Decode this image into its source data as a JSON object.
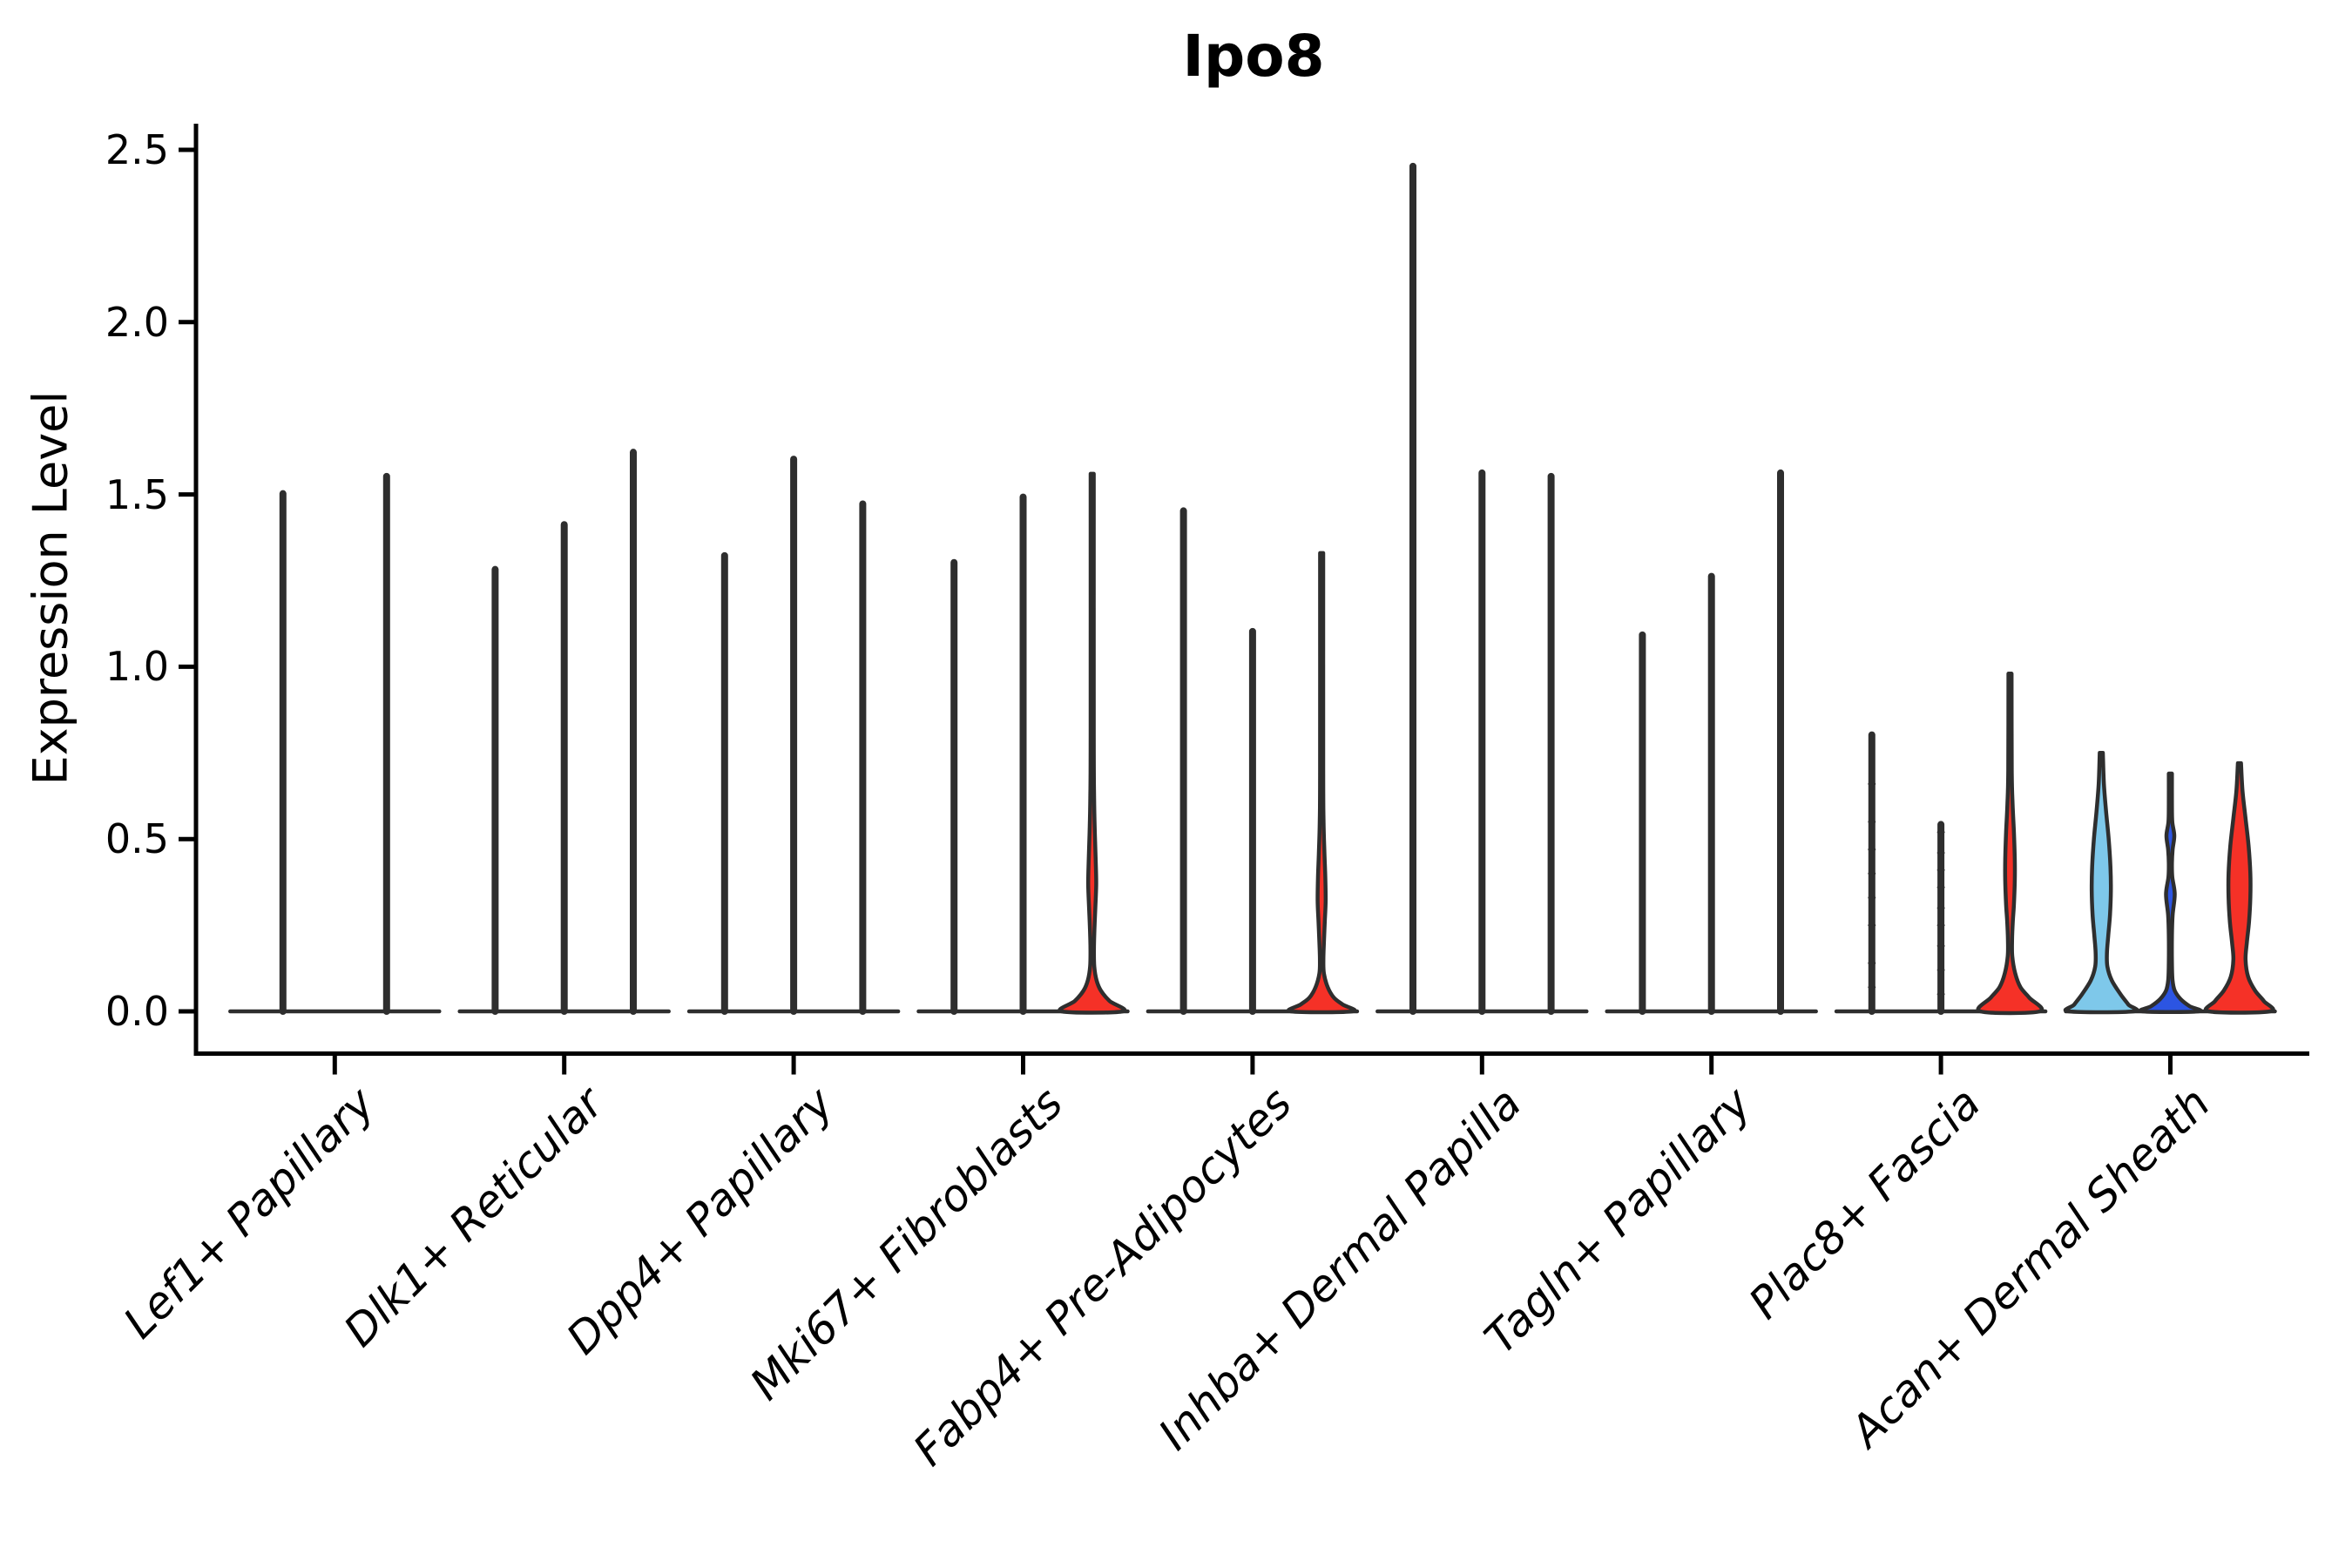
{
  "chart_data": {
    "type": "violin",
    "title": "Ipo8",
    "ylabel": "Expression Level",
    "ylim": [
      0.0,
      2.5
    ],
    "yticks": [
      {
        "value": 0.0,
        "label": "0.0"
      },
      {
        "value": 0.5,
        "label": "0.5"
      },
      {
        "value": 1.0,
        "label": "1.0"
      },
      {
        "value": 1.5,
        "label": "1.5"
      },
      {
        "value": 2.0,
        "label": "2.0"
      },
      {
        "value": 2.5,
        "label": "2.5"
      }
    ],
    "grid": false,
    "legend": null,
    "colors": {
      "axis": "#000000",
      "violin_stroke": "#2e2e2e",
      "red": "#f53127",
      "light_blue": "#7ec8ea",
      "dark_blue": "#2c55e2"
    },
    "categories": [
      {
        "label": "Lef1+ Papillary",
        "violins": [
          {
            "max": 1.51
          },
          {
            "max": 1.56
          }
        ]
      },
      {
        "label": "Dlk1+ Reticular",
        "violins": [
          {
            "max": 1.29
          },
          {
            "max": 1.42
          },
          {
            "max": 1.63
          }
        ]
      },
      {
        "label": "Dpp4+ Papillary",
        "violins": [
          {
            "max": 1.33
          },
          {
            "max": 1.61
          },
          {
            "max": 1.48
          }
        ]
      },
      {
        "label": "Mki67+ Fibroblasts",
        "violins": [
          {
            "max": 1.31
          },
          {
            "max": 1.5
          },
          {
            "max": 1.56,
            "fill": "red",
            "profile": [
              [
                1.56,
                1.8
              ],
              [
                0.8,
                1.8
              ],
              [
                0.62,
                2.2
              ],
              [
                0.52,
                3.0
              ],
              [
                0.44,
                4.0
              ],
              [
                0.37,
                4.6
              ],
              [
                0.3,
                3.6
              ],
              [
                0.24,
                2.6
              ],
              [
                0.18,
                2.0
              ],
              [
                0.13,
                2.4
              ],
              [
                0.09,
                5.0
              ],
              [
                0.06,
                10.0
              ],
              [
                0.03,
                20.0
              ],
              [
                0.0,
                35.0
              ]
            ]
          }
        ]
      },
      {
        "label": "Fabp4+ Pre-Adipocytes",
        "violins": [
          {
            "max": 1.46
          },
          {
            "max": 1.11
          },
          {
            "max": 1.33,
            "fill": "red",
            "profile": [
              [
                1.33,
                1.8
              ],
              [
                0.7,
                1.8
              ],
              [
                0.55,
                2.2
              ],
              [
                0.46,
                3.2
              ],
              [
                0.39,
                4.2
              ],
              [
                0.32,
                4.6
              ],
              [
                0.26,
                3.6
              ],
              [
                0.2,
                2.6
              ],
              [
                0.15,
                2.0
              ],
              [
                0.11,
                2.6
              ],
              [
                0.07,
                7.0
              ],
              [
                0.04,
                14.0
              ],
              [
                0.02,
                24.0
              ],
              [
                0.0,
                35.0
              ]
            ]
          }
        ]
      },
      {
        "label": "Inhba+ Dermal Papilla",
        "violins": [
          {
            "max": 2.46
          },
          {
            "max": 1.57
          },
          {
            "max": 1.56
          }
        ]
      },
      {
        "label": "Tagln+ Papillary",
        "violins": [
          {
            "max": 1.1
          },
          {
            "max": 1.27
          },
          {
            "max": 1.57
          }
        ]
      },
      {
        "label": "Plac8+ Fascia",
        "violins": [
          {
            "max": 0.81,
            "points": [
              0.66,
              0.55,
              0.47,
              0.4,
              0.33,
              0.25,
              0.14,
              0.07
            ]
          },
          {
            "max": 0.55,
            "points": [
              0.52,
              0.46,
              0.41,
              0.36,
              0.3,
              0.25,
              0.19,
              0.12,
              0.05
            ]
          },
          {
            "max": 0.98,
            "fill": "red",
            "profile": [
              [
                0.98,
                1.8
              ],
              [
                0.7,
                2.0
              ],
              [
                0.6,
                3.0
              ],
              [
                0.52,
                4.5
              ],
              [
                0.44,
                5.5
              ],
              [
                0.38,
                5.5
              ],
              [
                0.31,
                4.5
              ],
              [
                0.26,
                3.2
              ],
              [
                0.21,
                2.4
              ],
              [
                0.16,
                2.6
              ],
              [
                0.11,
                6.0
              ],
              [
                0.07,
                12.0
              ],
              [
                0.04,
                22.0
              ],
              [
                0.0,
                34.0
              ]
            ]
          }
        ]
      },
      {
        "label": "Acan+ Dermal Sheath",
        "violins": [
          {
            "max": 0.75,
            "fill": "light_blue",
            "profile": [
              [
                0.75,
                1.8
              ],
              [
                0.66,
                3.0
              ],
              [
                0.58,
                5.5
              ],
              [
                0.5,
                8.5
              ],
              [
                0.42,
                10.5
              ],
              [
                0.35,
                11.0
              ],
              [
                0.28,
                10.0
              ],
              [
                0.22,
                8.0
              ],
              [
                0.17,
                6.5
              ],
              [
                0.13,
                7.0
              ],
              [
                0.09,
                12.0
              ],
              [
                0.05,
                22.0
              ],
              [
                0.02,
                31.0
              ],
              [
                0.0,
                37.0
              ]
            ]
          },
          {
            "max": 0.69,
            "fill": "dark_blue",
            "profile": [
              [
                0.69,
                1.8
              ],
              [
                0.6,
                1.8
              ],
              [
                0.55,
                2.2
              ],
              [
                0.51,
                4.5
              ],
              [
                0.47,
                2.6
              ],
              [
                0.43,
                1.8
              ],
              [
                0.39,
                2.2
              ],
              [
                0.34,
                5.0
              ],
              [
                0.28,
                2.6
              ],
              [
                0.22,
                1.8
              ],
              [
                0.14,
                1.8
              ],
              [
                0.09,
                2.5
              ],
              [
                0.06,
                5.0
              ],
              [
                0.035,
                12.0
              ],
              [
                0.015,
                22.0
              ],
              [
                0.0,
                32.0
              ]
            ]
          },
          {
            "max": 0.72,
            "fill": "red",
            "profile": [
              [
                0.72,
                1.8
              ],
              [
                0.64,
                3.5
              ],
              [
                0.56,
                7.0
              ],
              [
                0.48,
                10.5
              ],
              [
                0.4,
                12.5
              ],
              [
                0.33,
                12.5
              ],
              [
                0.26,
                11.0
              ],
              [
                0.2,
                8.5
              ],
              [
                0.15,
                7.0
              ],
              [
                0.1,
                10.0
              ],
              [
                0.06,
                18.0
              ],
              [
                0.03,
                28.0
              ],
              [
                0.0,
                35.0
              ]
            ]
          }
        ]
      }
    ]
  }
}
